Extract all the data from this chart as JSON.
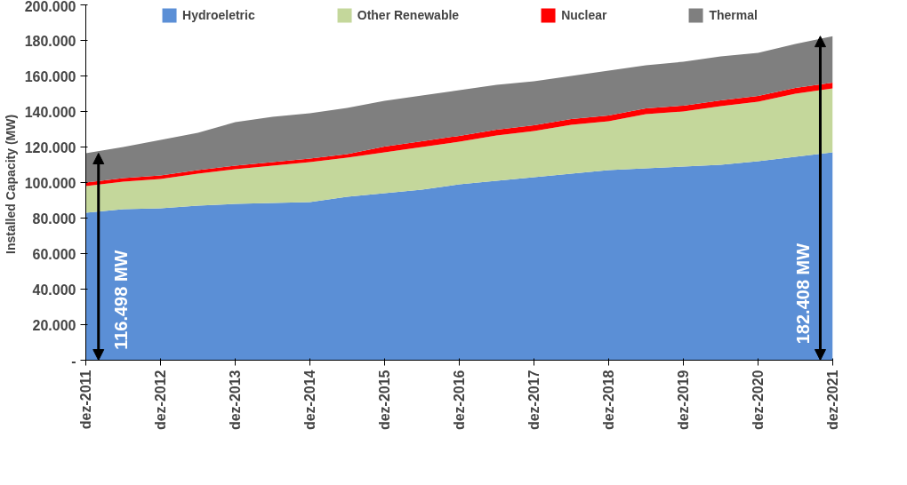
{
  "chart_data": {
    "type": "area",
    "stacked": true,
    "ylabel": "Installed Capacity  (MW)",
    "legend": "top",
    "grid": false,
    "x": [
      "2011-12",
      "2012-06",
      "2012-12",
      "2013-06",
      "2013-12",
      "2014-06",
      "2014-12",
      "2015-06",
      "2015-12",
      "2016-06",
      "2016-12",
      "2017-06",
      "2017-12",
      "2018-06",
      "2018-12",
      "2019-06",
      "2019-12",
      "2020-06",
      "2020-12",
      "2021-06",
      "2021-12"
    ],
    "xlim": [
      "2011-12",
      "2021-12"
    ],
    "xticks": [
      {
        "value": "2011-12",
        "label": "dez-2011"
      },
      {
        "value": "2012-12",
        "label": "dez-2012"
      },
      {
        "value": "2013-12",
        "label": "dez-2013"
      },
      {
        "value": "2014-12",
        "label": "dez-2014"
      },
      {
        "value": "2015-12",
        "label": "dez-2015"
      },
      {
        "value": "2016-12",
        "label": "dez-2016"
      },
      {
        "value": "2017-12",
        "label": "dez-2017"
      },
      {
        "value": "2018-12",
        "label": "dez-2018"
      },
      {
        "value": "2019-12",
        "label": "dez-2019"
      },
      {
        "value": "2020-12",
        "label": "dez-2020"
      },
      {
        "value": "2021-12",
        "label": "dez-2021"
      }
    ],
    "ylim": [
      0,
      200000
    ],
    "yticks": [
      {
        "value": 0,
        "label": "-"
      },
      {
        "value": 20000,
        "label": "20.000"
      },
      {
        "value": 40000,
        "label": "40.000"
      },
      {
        "value": 60000,
        "label": "60.000"
      },
      {
        "value": 80000,
        "label": "80.000"
      },
      {
        "value": 100000,
        "label": "100.000"
      },
      {
        "value": 120000,
        "label": "120.000"
      },
      {
        "value": 140000,
        "label": "140.000"
      },
      {
        "value": 160000,
        "label": "160.000"
      },
      {
        "value": 180000,
        "label": "180.000"
      },
      {
        "value": 200000,
        "label": "200.000"
      }
    ],
    "series": [
      {
        "name": "Hydroeletric",
        "color": "#5b8fd6",
        "values": [
          83000,
          85000,
          85500,
          87000,
          88000,
          88500,
          89000,
          92000,
          94000,
          96000,
          99000,
          101000,
          103000,
          105000,
          107000,
          108000,
          109000,
          110000,
          112000,
          114500,
          117000
        ]
      },
      {
        "name": "Other Renewable",
        "color": "#c4d79b",
        "values": [
          15000,
          15500,
          16500,
          18000,
          19500,
          21000,
          22500,
          22000,
          23000,
          24000,
          24000,
          25500,
          26000,
          27500,
          27500,
          30500,
          31000,
          33000,
          33500,
          35500,
          36000
        ]
      },
      {
        "name": "Nuclear",
        "color": "#ff0000",
        "values": [
          2000,
          2000,
          2000,
          2000,
          2000,
          2000,
          2000,
          2000,
          3300,
          3300,
          3300,
          3300,
          3300,
          3300,
          3300,
          3300,
          3300,
          3300,
          3300,
          3300,
          3300
        ]
      },
      {
        "name": "Thermal",
        "color": "#7f7f7f",
        "values": [
          16500,
          17500,
          20000,
          21000,
          24500,
          25500,
          25500,
          26000,
          25700,
          25700,
          25700,
          25200,
          24700,
          24200,
          25200,
          24200,
          24700,
          24700,
          24200,
          24700,
          26100
        ]
      }
    ],
    "annotations": [
      {
        "text": "116.498 MW",
        "x": "2012-02",
        "y": 116498
      },
      {
        "text": "182.408 MW",
        "x": "2021-10",
        "y": 182408
      }
    ]
  }
}
